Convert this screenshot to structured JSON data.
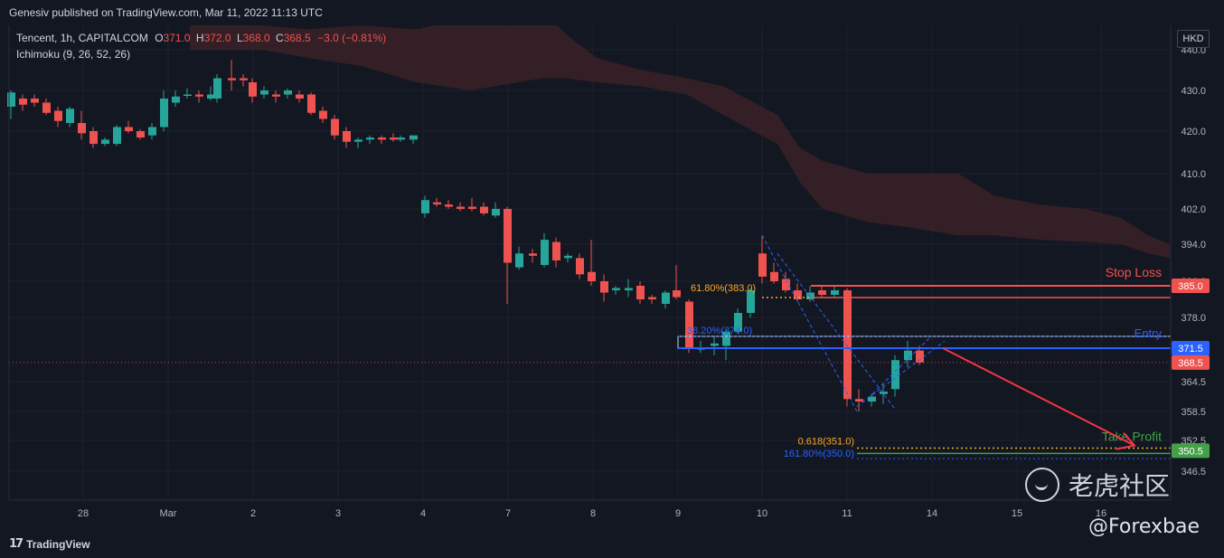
{
  "header": {
    "published": "Genesiv published on TradingView.com, Mar 11, 2022 11:13 UTC"
  },
  "legend": {
    "symbol": "Tencent, 1h, CAPITALCOM",
    "o_label": "O",
    "o_value": "371.0",
    "h_label": "H",
    "h_value": "372.0",
    "l_label": "L",
    "l_value": "368.0",
    "c_label": "C",
    "c_value": "368.5",
    "change": "−3.0 (−0.81%)",
    "indicator": "Ichimoku (9, 26, 52, 26)"
  },
  "currency": "HKD",
  "footer": {
    "brand": "TradingView"
  },
  "watermark": {
    "cn": "老虎社区",
    "handle": "@Forexbae"
  },
  "colors": {
    "background": "#131722",
    "up": "#26a69a",
    "down": "#ef5350",
    "cloud": "#3a2126",
    "stop": "#ef5350",
    "entry": "#2962ff",
    "take_profit": "#43a047",
    "fib_gold": "#f9a825",
    "fib_blue": "#2962ff"
  },
  "chart_data": {
    "type": "candlestick",
    "timeframe": "1h",
    "y_ticks": [
      "440.0",
      "430.0",
      "420.0",
      "410.0",
      "402.0",
      "394.0",
      "386.0",
      "378.0",
      "364.5",
      "358.5",
      "352.5",
      "346.5"
    ],
    "x_ticks": [
      "28",
      "Mar",
      "2",
      "3",
      "4",
      "7",
      "8",
      "9",
      "10",
      "11",
      "14",
      "15",
      "16"
    ],
    "price_labels": [
      {
        "text": "385.0",
        "value": 385.0,
        "color": "#ef5350"
      },
      {
        "text": "371.5",
        "value": 371.5,
        "color": "#2962ff"
      },
      {
        "text": "368.5",
        "value": 368.5,
        "color": "#ef5350"
      },
      {
        "text": "350.5",
        "value": 350.5,
        "color": "#43a047"
      }
    ],
    "annotations": {
      "stop_loss": {
        "label": "Stop Loss",
        "value": 385.0
      },
      "entry": {
        "label": "Entry",
        "value": 371.5
      },
      "take_profit": {
        "label": "Take Profit",
        "value": 350.5
      },
      "fib_618": {
        "label": "61.80%(383.0)",
        "value": 383.0
      },
      "fib_382": {
        "label": "38.20%(374.0)",
        "value": 374.0
      },
      "fib_0618": {
        "label": "0.618(351.0)",
        "value": 351.0
      },
      "fib_1618": {
        "label": "161.80%(350.0)",
        "value": 350.0
      }
    },
    "candles": [
      {
        "x": 12,
        "o": 426,
        "h": 430,
        "l": 423,
        "c": 429.5
      },
      {
        "x": 25,
        "o": 428,
        "h": 429,
        "l": 425,
        "c": 426.5
      },
      {
        "x": 38,
        "o": 428,
        "h": 429,
        "l": 426,
        "c": 427
      },
      {
        "x": 51,
        "o": 427,
        "h": 428,
        "l": 424,
        "c": 424.5
      },
      {
        "x": 64,
        "o": 425,
        "h": 426,
        "l": 421,
        "c": 422.5
      },
      {
        "x": 77,
        "o": 422,
        "h": 426,
        "l": 421,
        "c": 425.5
      },
      {
        "x": 90,
        "o": 422,
        "h": 425,
        "l": 418,
        "c": 419.5
      },
      {
        "x": 103,
        "o": 420,
        "h": 421,
        "l": 416,
        "c": 417
      },
      {
        "x": 116,
        "o": 417,
        "h": 418.5,
        "l": 416.5,
        "c": 418
      },
      {
        "x": 129,
        "o": 417,
        "h": 421.5,
        "l": 416.5,
        "c": 421
      },
      {
        "x": 142,
        "o": 421,
        "h": 422.5,
        "l": 419.5,
        "c": 420
      },
      {
        "x": 155,
        "o": 420,
        "h": 420.5,
        "l": 418,
        "c": 418.5
      },
      {
        "x": 168,
        "o": 419,
        "h": 422,
        "l": 418,
        "c": 421
      },
      {
        "x": 181,
        "o": 421,
        "h": 430,
        "l": 420,
        "c": 428
      },
      {
        "x": 194,
        "o": 427,
        "h": 430,
        "l": 426,
        "c": 428.5
      },
      {
        "x": 207,
        "o": 429,
        "h": 430.5,
        "l": 428,
        "c": 429
      },
      {
        "x": 220,
        "o": 429,
        "h": 430,
        "l": 427,
        "c": 428.5
      },
      {
        "x": 233,
        "o": 428,
        "h": 431,
        "l": 427.5,
        "c": 429
      },
      {
        "x": 240,
        "o": 428,
        "h": 434,
        "l": 427,
        "c": 433
      },
      {
        "x": 256,
        "o": 433,
        "h": 437.5,
        "l": 430,
        "c": 432.5
      },
      {
        "x": 269,
        "o": 433,
        "h": 434,
        "l": 431,
        "c": 432.5
      },
      {
        "x": 279,
        "o": 432,
        "h": 433,
        "l": 427,
        "c": 428.5
      },
      {
        "x": 292,
        "o": 429,
        "h": 431,
        "l": 428,
        "c": 430
      },
      {
        "x": 305,
        "o": 429,
        "h": 430,
        "l": 427,
        "c": 428.5
      },
      {
        "x": 318,
        "o": 429,
        "h": 430.5,
        "l": 428,
        "c": 430
      },
      {
        "x": 331,
        "o": 429,
        "h": 430,
        "l": 427,
        "c": 428
      },
      {
        "x": 344,
        "o": 429,
        "h": 429.5,
        "l": 424,
        "c": 424.5
      },
      {
        "x": 357,
        "o": 425,
        "h": 426,
        "l": 422,
        "c": 423
      },
      {
        "x": 370,
        "o": 423,
        "h": 424,
        "l": 418,
        "c": 419
      },
      {
        "x": 383,
        "o": 420,
        "h": 421,
        "l": 416,
        "c": 417.5
      },
      {
        "x": 396,
        "o": 417.5,
        "h": 418.5,
        "l": 416,
        "c": 418
      },
      {
        "x": 409,
        "o": 418,
        "h": 419,
        "l": 417,
        "c": 418.5
      },
      {
        "x": 422,
        "o": 418.5,
        "h": 419,
        "l": 417,
        "c": 418
      },
      {
        "x": 435,
        "o": 418.5,
        "h": 419.5,
        "l": 417.5,
        "c": 418
      },
      {
        "x": 443,
        "o": 418,
        "h": 419,
        "l": 417.5,
        "c": 418.5
      },
      {
        "x": 457,
        "o": 418,
        "h": 419,
        "l": 417,
        "c": 419
      },
      {
        "x": 470,
        "o": 401,
        "h": 405,
        "l": 400,
        "c": 404
      },
      {
        "x": 483,
        "o": 403.5,
        "h": 404.5,
        "l": 402.5,
        "c": 403
      },
      {
        "x": 496,
        "o": 403,
        "h": 404,
        "l": 402,
        "c": 402.5
      },
      {
        "x": 509,
        "o": 402.5,
        "h": 403.5,
        "l": 401.5,
        "c": 402
      },
      {
        "x": 522,
        "o": 402.5,
        "h": 404.5,
        "l": 401.5,
        "c": 402
      },
      {
        "x": 535,
        "o": 402.5,
        "h": 403.5,
        "l": 400.5,
        "c": 401
      },
      {
        "x": 548,
        "o": 400.5,
        "h": 403.5,
        "l": 400,
        "c": 402
      },
      {
        "x": 561,
        "o": 402,
        "h": 402.5,
        "l": 381,
        "c": 390
      },
      {
        "x": 574,
        "o": 389,
        "h": 393.5,
        "l": 388.5,
        "c": 392
      },
      {
        "x": 589,
        "o": 392,
        "h": 393,
        "l": 390,
        "c": 391.5
      },
      {
        "x": 602,
        "o": 389.5,
        "h": 396.5,
        "l": 389,
        "c": 395
      },
      {
        "x": 615,
        "o": 394.5,
        "h": 395.5,
        "l": 389,
        "c": 390.5
      },
      {
        "x": 628,
        "o": 391,
        "h": 392,
        "l": 390,
        "c": 391.5
      },
      {
        "x": 641,
        "o": 391,
        "h": 392,
        "l": 386.5,
        "c": 387.5
      },
      {
        "x": 654,
        "o": 388,
        "h": 395,
        "l": 385,
        "c": 386
      },
      {
        "x": 668,
        "o": 386,
        "h": 387.5,
        "l": 381.5,
        "c": 383.5
      },
      {
        "x": 681,
        "o": 384,
        "h": 385,
        "l": 383,
        "c": 384.5
      },
      {
        "x": 695,
        "o": 384,
        "h": 386.5,
        "l": 382.5,
        "c": 384.5
      },
      {
        "x": 708,
        "o": 385,
        "h": 386,
        "l": 381,
        "c": 382
      },
      {
        "x": 721,
        "o": 382.5,
        "h": 383,
        "l": 381,
        "c": 382
      },
      {
        "x": 736,
        "o": 381,
        "h": 384,
        "l": 380,
        "c": 383.5
      },
      {
        "x": 748,
        "o": 384,
        "h": 389.5,
        "l": 382,
        "c": 382.5
      },
      {
        "x": 762,
        "o": 381.5,
        "h": 382,
        "l": 370.5,
        "c": 371.5
      },
      {
        "x": 775,
        "o": 371.5,
        "h": 373,
        "l": 370.5,
        "c": 371.5
      },
      {
        "x": 790,
        "o": 372,
        "h": 374,
        "l": 370,
        "c": 372.5
      },
      {
        "x": 803,
        "o": 372,
        "h": 375.5,
        "l": 369,
        "c": 375
      },
      {
        "x": 816,
        "o": 375,
        "h": 380,
        "l": 374.5,
        "c": 379
      },
      {
        "x": 830,
        "o": 379,
        "h": 384.5,
        "l": 378,
        "c": 384
      },
      {
        "x": 843,
        "o": 392,
        "h": 396,
        "l": 385.5,
        "c": 387
      },
      {
        "x": 856,
        "o": 388,
        "h": 390,
        "l": 385.5,
        "c": 386
      },
      {
        "x": 869,
        "o": 386.5,
        "h": 388,
        "l": 383.5,
        "c": 384
      },
      {
        "x": 882,
        "o": 384,
        "h": 385.5,
        "l": 381.5,
        "c": 382
      },
      {
        "x": 896,
        "o": 382,
        "h": 385,
        "l": 381.5,
        "c": 383.5
      },
      {
        "x": 909,
        "o": 384,
        "h": 385,
        "l": 382.5,
        "c": 383
      },
      {
        "x": 923,
        "o": 383,
        "h": 385,
        "l": 382.5,
        "c": 384
      },
      {
        "x": 937,
        "o": 384,
        "h": 384.5,
        "l": 359.5,
        "c": 361
      },
      {
        "x": 950,
        "o": 361,
        "h": 363,
        "l": 358.5,
        "c": 360.5
      },
      {
        "x": 964,
        "o": 360.5,
        "h": 362,
        "l": 359.5,
        "c": 361.5
      },
      {
        "x": 977,
        "o": 362,
        "h": 364,
        "l": 360,
        "c": 362.5
      },
      {
        "x": 990,
        "o": 363,
        "h": 370,
        "l": 361.5,
        "c": 369
      },
      {
        "x": 1004,
        "o": 369,
        "h": 373,
        "l": 367.5,
        "c": 371
      },
      {
        "x": 1017,
        "o": 371,
        "h": 372,
        "l": 368,
        "c": 368.5
      }
    ],
    "cloud": [
      {
        "x": 210,
        "top": 452,
        "bot": 440
      },
      {
        "x": 290,
        "top": 446,
        "bot": 440
      },
      {
        "x": 340,
        "top": 445,
        "bot": 438
      },
      {
        "x": 400,
        "top": 446,
        "bot": 436
      },
      {
        "x": 460,
        "top": 445,
        "bot": 432
      },
      {
        "x": 520,
        "top": 448,
        "bot": 430
      },
      {
        "x": 600,
        "top": 450,
        "bot": 433
      },
      {
        "x": 625,
        "top": 444,
        "bot": 433
      },
      {
        "x": 660,
        "top": 438,
        "bot": 432
      },
      {
        "x": 710,
        "top": 435,
        "bot": 431
      },
      {
        "x": 760,
        "top": 433,
        "bot": 429
      },
      {
        "x": 800,
        "top": 431,
        "bot": 424
      },
      {
        "x": 860,
        "top": 424,
        "bot": 417
      },
      {
        "x": 885,
        "top": 416,
        "bot": 408
      },
      {
        "x": 910,
        "top": 413,
        "bot": 402
      },
      {
        "x": 960,
        "top": 410,
        "bot": 399
      },
      {
        "x": 1000,
        "top": 410,
        "bot": 398
      },
      {
        "x": 1060,
        "top": 410,
        "bot": 396
      },
      {
        "x": 1100,
        "top": 405,
        "bot": 396
      },
      {
        "x": 1150,
        "top": 403,
        "bot": 395
      },
      {
        "x": 1200,
        "top": 402,
        "bot": 394.5
      },
      {
        "x": 1240,
        "top": 400,
        "bot": 394
      },
      {
        "x": 1270,
        "top": 396,
        "bot": 392
      },
      {
        "x": 1294,
        "top": 394,
        "bot": 391
      }
    ]
  }
}
